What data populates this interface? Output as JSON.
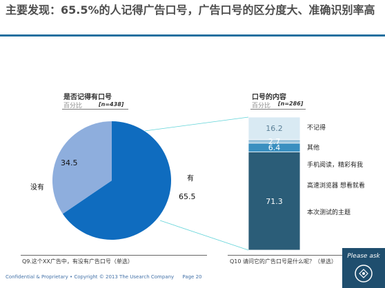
{
  "title": "主要发现：65.5%的人记得广告口号，广告口号的区分度大、准确识别率高",
  "pie_chart": {
    "title": "是否记得有口号",
    "subtitle": "百分比",
    "n": "[n=438]",
    "question": "Q9.这个XX广告中，有没有广告口号（单选）"
  },
  "bar_chart": {
    "title": "口号的内容",
    "subtitle": "百分比",
    "n": "[n=286]",
    "question": "Q10 请问它的广告口号是什么呢？（单选）"
  },
  "footer": {
    "confidential": "Confidential & Proprietary • Copyright © 2013 The Usearch Company",
    "page": "Page 20"
  },
  "watermark_text": "Please ask",
  "colors": {
    "title_rule": "#1f6f9f",
    "pie_yes": "#0f6cbf",
    "pie_no": "#8eaedd",
    "seg_not_remember": "#d9eaf3",
    "seg_other_small": "#9cc4dc",
    "seg_other": "#3a8fc0",
    "seg_main": "#2b5d78"
  },
  "chart_data": [
    {
      "type": "pie",
      "title": "是否记得有口号",
      "subtitle": "百分比",
      "n": "[n=438]",
      "slices": [
        {
          "label": "有",
          "value": 65.5,
          "display": "65.5",
          "color": "#0f6cbf"
        },
        {
          "label": "没有",
          "value": 34.5,
          "display": "34.5",
          "color": "#8eaedd"
        }
      ]
    },
    {
      "type": "bar",
      "stacked": true,
      "title": "口号的内容",
      "subtitle": "百分比",
      "n": "[n=286]",
      "segments": [
        {
          "label": "本次测试的主题",
          "value": 71.3,
          "display": "71.3",
          "color": "#2b5d78",
          "label_lines": [
            "手机阅读，精彩有我",
            "高速浏览器 想看就看",
            "本次测试的主题"
          ]
        },
        {
          "label": "其他",
          "value": 6.4,
          "display": "6.4",
          "color": "#3a8fc0"
        },
        {
          "label": "",
          "value": 2.7,
          "display": "2.7",
          "color": "#9cc4dc"
        },
        {
          "label": "不记得",
          "value": 16.2,
          "display": "16.2",
          "color": "#d9eaf3"
        }
      ]
    }
  ]
}
